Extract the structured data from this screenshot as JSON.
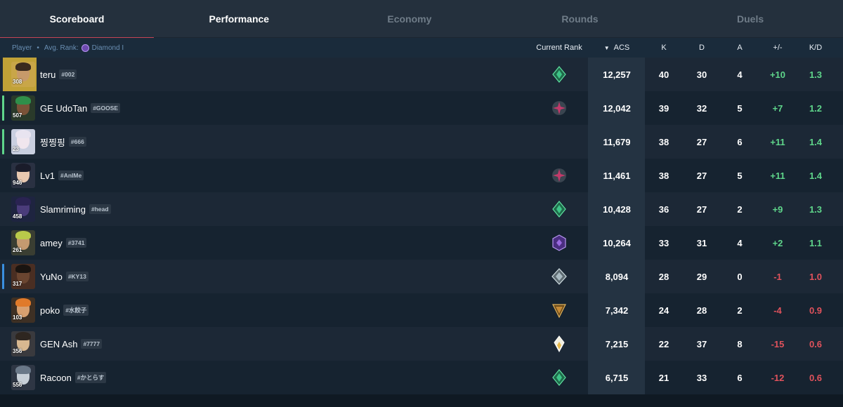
{
  "tabs": [
    {
      "label": "Scoreboard",
      "active": true
    },
    {
      "label": "Performance",
      "active": false
    },
    {
      "label": "Economy",
      "active": false
    },
    {
      "label": "Rounds",
      "active": false
    },
    {
      "label": "Duels",
      "active": false
    }
  ],
  "header": {
    "player": "Player",
    "separator": "•",
    "avg_rank_label": "Avg. Rank:",
    "avg_rank_value": "Diamond I",
    "current_rank": "Current Rank",
    "sort_indicator": "▼",
    "acs": "ACS",
    "k": "K",
    "d": "D",
    "a": "A",
    "plus_minus": "+/-",
    "kd": "K/D"
  },
  "rows": [
    {
      "name": "teru",
      "tag": "#002",
      "level": "308",
      "rank_icon": "emerald-rank-icon",
      "acs": "12,257",
      "k": "40",
      "d": "30",
      "a": "4",
      "pm": "+10",
      "kd": "1.3",
      "team_color": "",
      "skin": "#c79a6a",
      "hair": "#3a2a1e",
      "avatar_bg": "#c9a648"
    },
    {
      "name": "GE UdoTan",
      "tag": "#GOOSE",
      "level": "507",
      "rank_icon": "ascendant-rank-icon",
      "acs": "12,042",
      "k": "39",
      "d": "32",
      "a": "5",
      "pm": "+7",
      "kd": "1.2",
      "team_color": "#5fd68b",
      "skin": "#7a5238",
      "hair": "#2f8f4a",
      "avatar_bg": "#2a3a2a"
    },
    {
      "name": "찡찡핑",
      "tag": "#666",
      "level": "23",
      "rank_icon": "",
      "acs": "11,679",
      "k": "38",
      "d": "27",
      "a": "6",
      "pm": "+11",
      "kd": "1.4",
      "team_color": "#5fd68b",
      "skin": "#f0e6ee",
      "hair": "#e8e4f0",
      "avatar_bg": "#c9cfe0"
    },
    {
      "name": "Lv1",
      "tag": "#AnIMe",
      "level": "946",
      "rank_icon": "ascendant-rank-icon",
      "acs": "11,461",
      "k": "38",
      "d": "27",
      "a": "5",
      "pm": "+11",
      "kd": "1.4",
      "team_color": "",
      "skin": "#e8c8b0",
      "hair": "#1a1c2a",
      "avatar_bg": "#2a3142"
    },
    {
      "name": "Slamriming",
      "tag": "#head",
      "level": "458",
      "rank_icon": "emerald-rank-icon",
      "acs": "10,428",
      "k": "36",
      "d": "27",
      "a": "2",
      "pm": "+9",
      "kd": "1.3",
      "team_color": "",
      "skin": "#4a3c7a",
      "hair": "#2a2352",
      "avatar_bg": "#1e2440"
    },
    {
      "name": "amey",
      "tag": "#3741",
      "level": "261",
      "rank_icon": "diamond-rank-icon",
      "acs": "10,264",
      "k": "33",
      "d": "31",
      "a": "4",
      "pm": "+2",
      "kd": "1.1",
      "team_color": "",
      "skin": "#c49a70",
      "hair": "#b9c94a",
      "avatar_bg": "#3a3e32"
    },
    {
      "name": "YuNo",
      "tag": "#KY13",
      "level": "317",
      "rank_icon": "platinum-rank-icon",
      "acs": "8,094",
      "k": "28",
      "d": "29",
      "a": "0",
      "pm": "-1",
      "kd": "1.0",
      "team_color": "#3a8fe0",
      "skin": "#6a4530",
      "hair": "#1a1410",
      "avatar_bg": "#4a2e22"
    },
    {
      "name": "poko",
      "tag": "#水餃子",
      "level": "103",
      "rank_icon": "gold-rank-icon",
      "acs": "7,342",
      "k": "24",
      "d": "28",
      "a": "2",
      "pm": "-4",
      "kd": "0.9",
      "team_color": "",
      "skin": "#d8a070",
      "hair": "#e07a2a",
      "avatar_bg": "#3e3024"
    },
    {
      "name": "GEN Ash",
      "tag": "#7777",
      "level": "356",
      "rank_icon": "radiant-rank-icon",
      "acs": "7,215",
      "k": "22",
      "d": "37",
      "a": "8",
      "pm": "-15",
      "kd": "0.6",
      "team_color": "",
      "skin": "#d8b890",
      "hair": "#2e2620",
      "avatar_bg": "#3a3a3e"
    },
    {
      "name": "Racoon",
      "tag": "#かとらす",
      "level": "556",
      "rank_icon": "emerald-rank-icon",
      "acs": "6,715",
      "k": "21",
      "d": "33",
      "a": "6",
      "pm": "-12",
      "kd": "0.6",
      "team_color": "",
      "skin": "#c8d0d8",
      "hair": "#6a7888",
      "avatar_bg": "#2e3644"
    }
  ],
  "colors": {
    "positive": "#5fd68b",
    "negative": "#e0525c",
    "active_tab_underline": "#c54454"
  }
}
